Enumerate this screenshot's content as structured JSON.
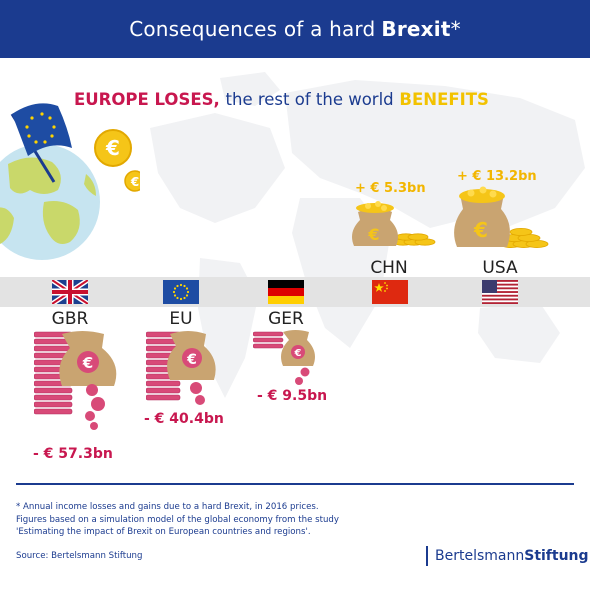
{
  "header": {
    "title_prefix": "Consequences of a hard",
    "title_bold": "Brexit",
    "title_suffix": "*"
  },
  "headline": {
    "loses": "EUROPE LOSES,",
    "mid": "the rest of the world",
    "benefits": "BENEFITS"
  },
  "icons": {
    "globe": "globe-icon",
    "eu_flag": "eu-flag-icon",
    "coin": "euro-coin-icon",
    "gain_bag": "money-bag-gold-icon",
    "loss_bag": "money-bag-red-icon"
  },
  "gainers": [
    {
      "code": "CHN",
      "value": "+ € 5.3bn",
      "flag": "china-flag-icon"
    },
    {
      "code": "USA",
      "value": "+ € 13.2bn",
      "flag": "usa-flag-icon"
    }
  ],
  "losers": [
    {
      "code": "GBR",
      "value": "- € 57.3bn",
      "flag": "uk-flag-icon"
    },
    {
      "code": "EU",
      "value": "- € 40.4bn",
      "flag": "eu-flag-icon"
    },
    {
      "code": "GER",
      "value": "- € 9.5bn",
      "flag": "germany-flag-icon"
    }
  ],
  "footnote": {
    "line1": "* Annual income losses and gains due to a hard Brexit, in 2016 prices.",
    "line2": "Figures based on a simulation model of the global economy from the study",
    "line3": "'Estimating the impact of Brexit on European countries and regions'."
  },
  "source": "Source: Bertelsmann Stiftung",
  "brand": {
    "part1": "Bertelsmann",
    "part2": "Stiftung"
  },
  "colors": {
    "navy": "#1b3b8f",
    "loss_red": "#c8174f",
    "gain_gold": "#f2c200",
    "band_gray": "#e3e3e3"
  }
}
